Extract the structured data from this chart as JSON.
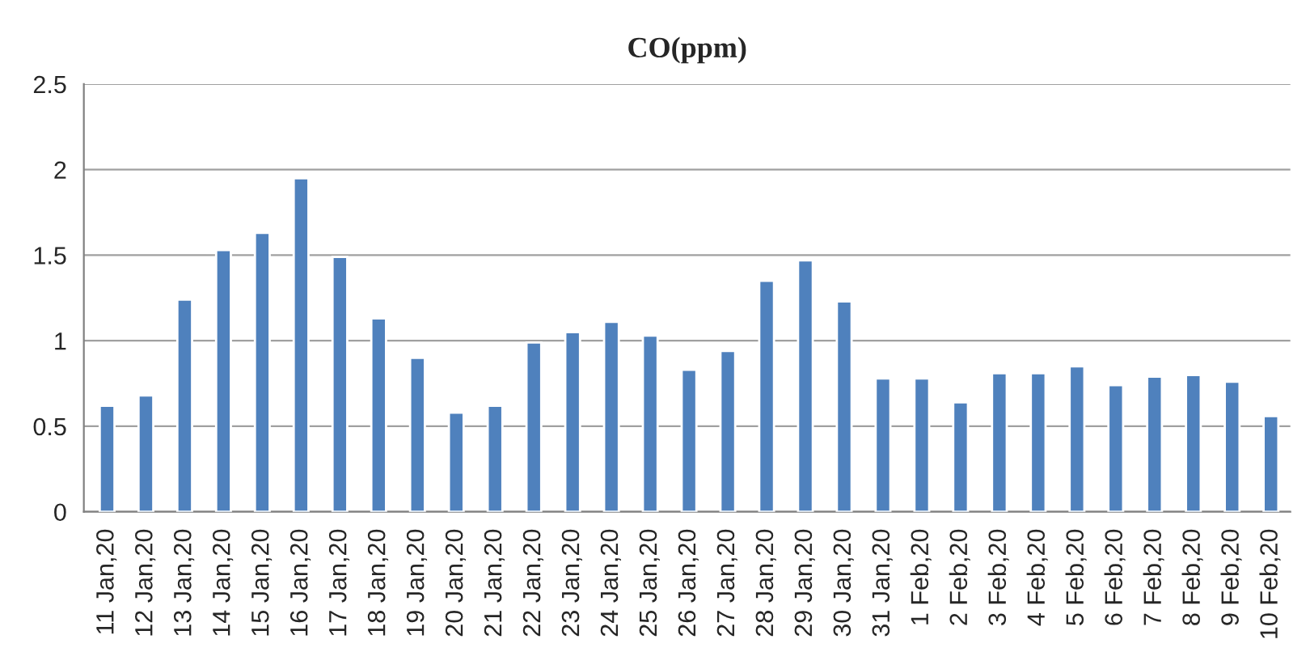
{
  "chart_data": {
    "type": "bar",
    "title": "CO(ppm)",
    "categories": [
      "11 Jan,20",
      "12 Jan,20",
      "13 Jan,20",
      "14 Jan,20",
      "15 Jan,20",
      "16 Jan,20",
      "17 Jan,20",
      "18 Jan,20",
      "19 Jan,20",
      "20 Jan,20",
      "21 Jan,20",
      "22 Jan,20",
      "23 Jan,20",
      "24 Jan,20",
      "25 Jan,20",
      "26 Jan,20",
      "27 Jan,20",
      "28 Jan,20",
      "29 Jan,20",
      "30 Jan,20",
      "31 Jan,20",
      "1 Feb,20",
      "2 Feb,20",
      "3 Feb,20",
      "4 Feb,20",
      "5 Feb,20",
      "6 Feb,20",
      "7 Feb,20",
      "8 Feb,20",
      "9 Feb,20",
      "10 Feb,20"
    ],
    "values": [
      0.62,
      0.68,
      1.24,
      1.53,
      1.63,
      1.95,
      1.49,
      1.13,
      0.9,
      0.58,
      0.62,
      0.99,
      1.05,
      1.11,
      1.03,
      0.83,
      0.94,
      1.35,
      1.47,
      1.23,
      0.78,
      0.78,
      0.64,
      0.81,
      0.81,
      0.85,
      0.74,
      0.79,
      0.8,
      0.76,
      0.56
    ],
    "color": "#4f81bd",
    "ylim": [
      0,
      2.5
    ],
    "yticks": [
      0,
      {
        "value": 0.5,
        "label": "0.5"
      },
      1,
      {
        "value": 1.5,
        "label": "1.5"
      },
      2,
      {
        "value": 2.5,
        "label": "2.5"
      }
    ],
    "grid": "y",
    "legend": false
  }
}
